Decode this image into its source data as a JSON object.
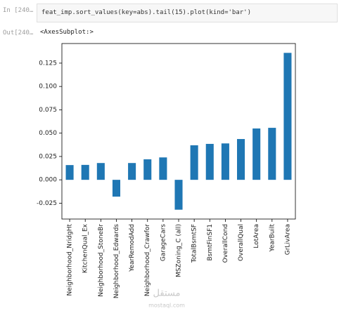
{
  "cell": {
    "input_prompt": "In [240…",
    "code": "feat_imp.sort_values(key=abs).tail(15).plot(kind='bar')",
    "output_prompt": "Out[240…",
    "output_text": "<AxesSubplot:>"
  },
  "watermark": {
    "arabic": "مستقل",
    "latin": "mostaql.com"
  },
  "chart_data": {
    "type": "bar",
    "color": "#1f77b4",
    "categories": [
      "Neighborhood_NridgHt",
      "KitchenQual_Ex",
      "Neighborhood_StoneBr",
      "Neighborhood_Edwards",
      "YearRemodAdd",
      "Neighborhood_Crawfor",
      "GarageCars",
      "MSZoning_C (all)",
      "TotalBsmtSF",
      "BsmtFinSF1",
      "OverallCond",
      "OverallQual",
      "LotArea",
      "YearBuilt",
      "GrLivArea"
    ],
    "values": [
      0.0158,
      0.016,
      0.018,
      -0.018,
      0.018,
      0.022,
      0.024,
      -0.032,
      0.037,
      0.0385,
      0.039,
      0.0437,
      0.055,
      0.0557,
      0.136
    ],
    "ylim": [
      -0.042,
      0.146
    ],
    "yticks": [
      -0.025,
      {
        "value": 0,
        "label": "0.000"
      },
      0.025,
      {
        "value": 0.05,
        "label": "0.050"
      },
      0.075,
      {
        "value": 0.1,
        "label": "0.100"
      },
      0.125
    ]
  }
}
